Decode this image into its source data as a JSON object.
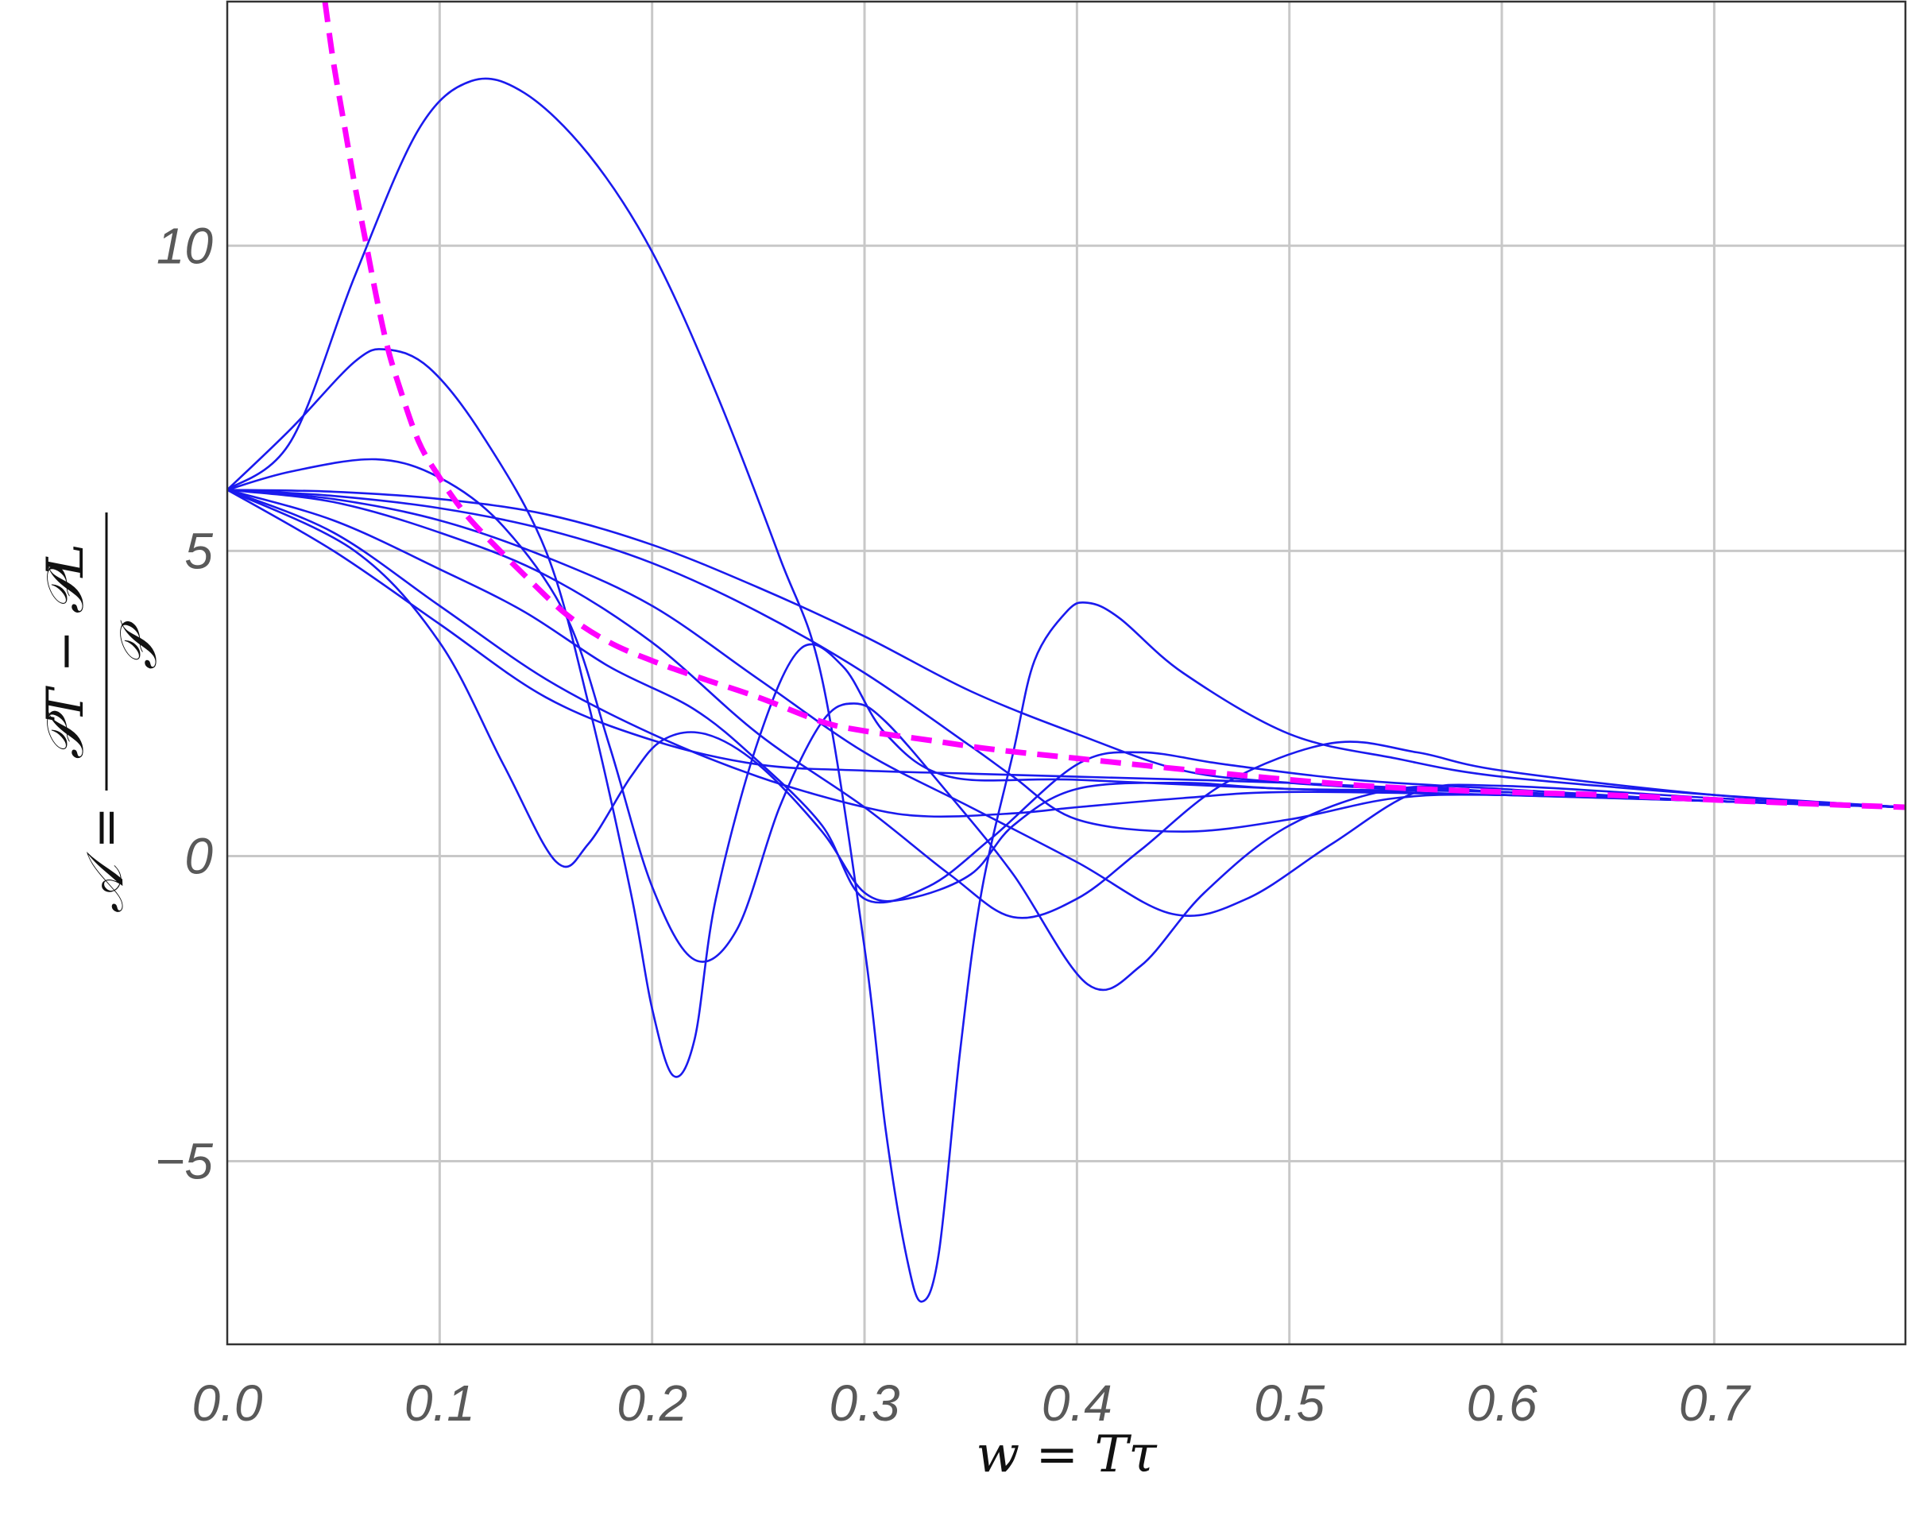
{
  "chart_data": {
    "type": "line",
    "title": "",
    "xlabel": "w = Tτ",
    "ylabel": {
      "prefix": "𝒜 =",
      "numerator": "𝒫T − 𝒫L",
      "denominator": "𝒫"
    },
    "xlim": [
      0,
      0.79
    ],
    "ylim": [
      -8,
      14
    ],
    "x_ticks": [
      {
        "value": 0.0,
        "label": "0.0"
      },
      {
        "value": 0.1,
        "label": "0.1"
      },
      {
        "value": 0.2,
        "label": "0.2"
      },
      {
        "value": 0.3,
        "label": "0.3"
      },
      {
        "value": 0.4,
        "label": "0.4"
      },
      {
        "value": 0.5,
        "label": "0.5"
      },
      {
        "value": 0.6,
        "label": "0.6"
      },
      {
        "value": 0.7,
        "label": "0.7"
      }
    ],
    "y_ticks": [
      {
        "value": -5,
        "label": "−5"
      },
      {
        "value": 0,
        "label": "0"
      },
      {
        "value": 5,
        "label": "5"
      },
      {
        "value": 10,
        "label": "10"
      }
    ],
    "grid": true,
    "colors": {
      "solid": "#1a1aee",
      "dashed": "#ff00ff"
    },
    "series": [
      {
        "style": "solid",
        "points": [
          [
            0,
            6
          ],
          [
            0.03,
            6.8
          ],
          [
            0.06,
            9.5
          ],
          [
            0.09,
            11.9
          ],
          [
            0.115,
            12.7
          ],
          [
            0.14,
            12.5
          ],
          [
            0.17,
            11.5
          ],
          [
            0.2,
            9.9
          ],
          [
            0.23,
            7.6
          ],
          [
            0.26,
            4.9
          ],
          [
            0.28,
            2.9
          ],
          [
            0.3,
            -1.5
          ],
          [
            0.31,
            -4.5
          ],
          [
            0.32,
            -6.6
          ],
          [
            0.327,
            -7.3
          ],
          [
            0.335,
            -6.5
          ],
          [
            0.345,
            -3.2
          ],
          [
            0.355,
            -0.6
          ],
          [
            0.37,
            1.7
          ],
          [
            0.38,
            3.2
          ],
          [
            0.395,
            4.0
          ],
          [
            0.405,
            4.15
          ],
          [
            0.42,
            3.9
          ],
          [
            0.45,
            3.0
          ],
          [
            0.5,
            2.0
          ],
          [
            0.55,
            1.6
          ],
          [
            0.6,
            1.3
          ],
          [
            0.7,
            1.0
          ],
          [
            0.79,
            0.8
          ]
        ]
      },
      {
        "style": "solid",
        "points": [
          [
            0,
            6
          ],
          [
            0.03,
            7.0
          ],
          [
            0.06,
            8.1
          ],
          [
            0.075,
            8.3
          ],
          [
            0.095,
            8.0
          ],
          [
            0.12,
            6.9
          ],
          [
            0.15,
            5.0
          ],
          [
            0.17,
            2.5
          ],
          [
            0.19,
            -0.6
          ],
          [
            0.2,
            -2.5
          ],
          [
            0.21,
            -3.6
          ],
          [
            0.22,
            -3.0
          ],
          [
            0.23,
            -0.7
          ],
          [
            0.25,
            1.9
          ],
          [
            0.27,
            3.4
          ],
          [
            0.29,
            3.1
          ],
          [
            0.31,
            2.0
          ],
          [
            0.34,
            1.3
          ],
          [
            0.4,
            1.25
          ],
          [
            0.5,
            1.1
          ],
          [
            0.6,
            1.0
          ],
          [
            0.7,
            0.9
          ],
          [
            0.79,
            0.8
          ]
        ]
      },
      {
        "style": "solid",
        "points": [
          [
            0,
            6
          ],
          [
            0.03,
            6.3
          ],
          [
            0.07,
            6.5
          ],
          [
            0.1,
            6.2
          ],
          [
            0.13,
            5.4
          ],
          [
            0.16,
            3.9
          ],
          [
            0.18,
            1.8
          ],
          [
            0.2,
            -0.5
          ],
          [
            0.22,
            -1.7
          ],
          [
            0.24,
            -1.2
          ],
          [
            0.26,
            0.8
          ],
          [
            0.28,
            2.2
          ],
          [
            0.295,
            2.5
          ],
          [
            0.31,
            2.2
          ],
          [
            0.34,
            1.0
          ],
          [
            0.37,
            -0.3
          ],
          [
            0.405,
            -2.1
          ],
          [
            0.43,
            -1.8
          ],
          [
            0.46,
            -0.6
          ],
          [
            0.5,
            0.5
          ],
          [
            0.55,
            1.1
          ],
          [
            0.6,
            1.05
          ],
          [
            0.7,
            0.9
          ],
          [
            0.79,
            0.8
          ]
        ]
      },
      {
        "style": "solid",
        "points": [
          [
            0,
            6
          ],
          [
            0.06,
            5.0
          ],
          [
            0.1,
            3.5
          ],
          [
            0.13,
            1.5
          ],
          [
            0.155,
            -0.1
          ],
          [
            0.17,
            0.2
          ],
          [
            0.19,
            1.3
          ],
          [
            0.205,
            1.9
          ],
          [
            0.225,
            2.0
          ],
          [
            0.25,
            1.5
          ],
          [
            0.28,
            0.4
          ],
          [
            0.3,
            -0.6
          ],
          [
            0.32,
            -0.7
          ],
          [
            0.35,
            -0.3
          ],
          [
            0.37,
            0.5
          ],
          [
            0.4,
            1.1
          ],
          [
            0.45,
            1.2
          ],
          [
            0.5,
            1.1
          ],
          [
            0.6,
            1.05
          ],
          [
            0.7,
            0.9
          ],
          [
            0.79,
            0.8
          ]
        ]
      },
      {
        "style": "solid",
        "points": [
          [
            0,
            6
          ],
          [
            0.05,
            5.5
          ],
          [
            0.1,
            4.7
          ],
          [
            0.14,
            4.0
          ],
          [
            0.18,
            3.1
          ],
          [
            0.22,
            2.4
          ],
          [
            0.25,
            1.55
          ],
          [
            0.28,
            0.5
          ],
          [
            0.3,
            -0.7
          ],
          [
            0.33,
            -0.5
          ],
          [
            0.36,
            0.3
          ],
          [
            0.4,
            1.5
          ],
          [
            0.43,
            1.7
          ],
          [
            0.47,
            1.5
          ],
          [
            0.53,
            1.25
          ],
          [
            0.6,
            1.1
          ],
          [
            0.7,
            0.9
          ],
          [
            0.79,
            0.8
          ]
        ]
      },
      {
        "style": "solid",
        "points": [
          [
            0,
            6
          ],
          [
            0.05,
            5.8
          ],
          [
            0.1,
            5.3
          ],
          [
            0.15,
            4.6
          ],
          [
            0.2,
            3.5
          ],
          [
            0.25,
            2.0
          ],
          [
            0.3,
            0.8
          ],
          [
            0.34,
            -0.3
          ],
          [
            0.37,
            -1.0
          ],
          [
            0.4,
            -0.7
          ],
          [
            0.43,
            0.1
          ],
          [
            0.47,
            1.2
          ],
          [
            0.52,
            1.85
          ],
          [
            0.56,
            1.7
          ],
          [
            0.6,
            1.4
          ],
          [
            0.7,
            1.0
          ],
          [
            0.79,
            0.8
          ]
        ]
      },
      {
        "style": "solid",
        "points": [
          [
            0,
            6
          ],
          [
            0.05,
            5.85
          ],
          [
            0.1,
            5.5
          ],
          [
            0.15,
            4.9
          ],
          [
            0.2,
            4.1
          ],
          [
            0.25,
            2.9
          ],
          [
            0.3,
            1.7
          ],
          [
            0.35,
            0.8
          ],
          [
            0.4,
            -0.1
          ],
          [
            0.445,
            -0.95
          ],
          [
            0.48,
            -0.7
          ],
          [
            0.52,
            0.2
          ],
          [
            0.56,
            1.05
          ],
          [
            0.6,
            1.15
          ],
          [
            0.7,
            0.95
          ],
          [
            0.79,
            0.8
          ]
        ]
      },
      {
        "style": "solid",
        "points": [
          [
            0,
            6
          ],
          [
            0.05,
            5.9
          ],
          [
            0.1,
            5.7
          ],
          [
            0.15,
            5.35
          ],
          [
            0.2,
            4.8
          ],
          [
            0.25,
            4.0
          ],
          [
            0.3,
            3.0
          ],
          [
            0.35,
            1.8
          ],
          [
            0.37,
            1.3
          ],
          [
            0.4,
            0.6
          ],
          [
            0.45,
            0.4
          ],
          [
            0.5,
            0.6
          ],
          [
            0.55,
            0.95
          ],
          [
            0.6,
            1.0
          ],
          [
            0.7,
            0.9
          ],
          [
            0.79,
            0.8
          ]
        ]
      },
      {
        "style": "solid",
        "points": [
          [
            0,
            6
          ],
          [
            0.05,
            5.97
          ],
          [
            0.1,
            5.85
          ],
          [
            0.15,
            5.6
          ],
          [
            0.2,
            5.1
          ],
          [
            0.25,
            4.4
          ],
          [
            0.3,
            3.6
          ],
          [
            0.35,
            2.7
          ],
          [
            0.4,
            2.0
          ],
          [
            0.45,
            1.4
          ],
          [
            0.5,
            1.2
          ],
          [
            0.55,
            1.1
          ],
          [
            0.6,
            1.05
          ],
          [
            0.7,
            0.9
          ],
          [
            0.79,
            0.8
          ]
        ]
      },
      {
        "style": "solid",
        "points": [
          [
            0,
            6
          ],
          [
            0.05,
            5.3
          ],
          [
            0.1,
            4.1
          ],
          [
            0.15,
            2.9
          ],
          [
            0.2,
            2.0
          ],
          [
            0.25,
            1.3
          ],
          [
            0.3,
            0.8
          ],
          [
            0.33,
            0.65
          ],
          [
            0.37,
            0.7
          ],
          [
            0.4,
            0.8
          ],
          [
            0.45,
            0.95
          ],
          [
            0.5,
            1.05
          ],
          [
            0.6,
            1.0
          ],
          [
            0.7,
            0.9
          ],
          [
            0.79,
            0.8
          ]
        ]
      },
      {
        "style": "solid",
        "points": [
          [
            0,
            6
          ],
          [
            0.05,
            5.0
          ],
          [
            0.1,
            3.8
          ],
          [
            0.15,
            2.6
          ],
          [
            0.2,
            1.9
          ],
          [
            0.25,
            1.5
          ],
          [
            0.3,
            1.4
          ],
          [
            0.35,
            1.35
          ],
          [
            0.4,
            1.3
          ],
          [
            0.5,
            1.2
          ],
          [
            0.6,
            1.05
          ],
          [
            0.7,
            0.9
          ],
          [
            0.79,
            0.8
          ]
        ]
      },
      {
        "style": "dashed",
        "points": [
          [
            0.046,
            14
          ],
          [
            0.05,
            13.0
          ],
          [
            0.055,
            12.0
          ],
          [
            0.06,
            11.0
          ],
          [
            0.065,
            10.1
          ],
          [
            0.07,
            9.2
          ],
          [
            0.075,
            8.4
          ],
          [
            0.08,
            7.8
          ],
          [
            0.09,
            6.8
          ],
          [
            0.1,
            6.2
          ],
          [
            0.11,
            5.7
          ],
          [
            0.12,
            5.3
          ],
          [
            0.14,
            4.6
          ],
          [
            0.16,
            3.95
          ],
          [
            0.18,
            3.5
          ],
          [
            0.2,
            3.2
          ],
          [
            0.22,
            2.95
          ],
          [
            0.25,
            2.6
          ],
          [
            0.28,
            2.2
          ],
          [
            0.3,
            2.05
          ],
          [
            0.33,
            1.9
          ],
          [
            0.36,
            1.75
          ],
          [
            0.4,
            1.6
          ],
          [
            0.45,
            1.42
          ],
          [
            0.5,
            1.25
          ],
          [
            0.55,
            1.12
          ],
          [
            0.6,
            1.05
          ],
          [
            0.65,
            1.0
          ],
          [
            0.7,
            0.92
          ],
          [
            0.75,
            0.85
          ],
          [
            0.79,
            0.8
          ]
        ]
      }
    ]
  }
}
